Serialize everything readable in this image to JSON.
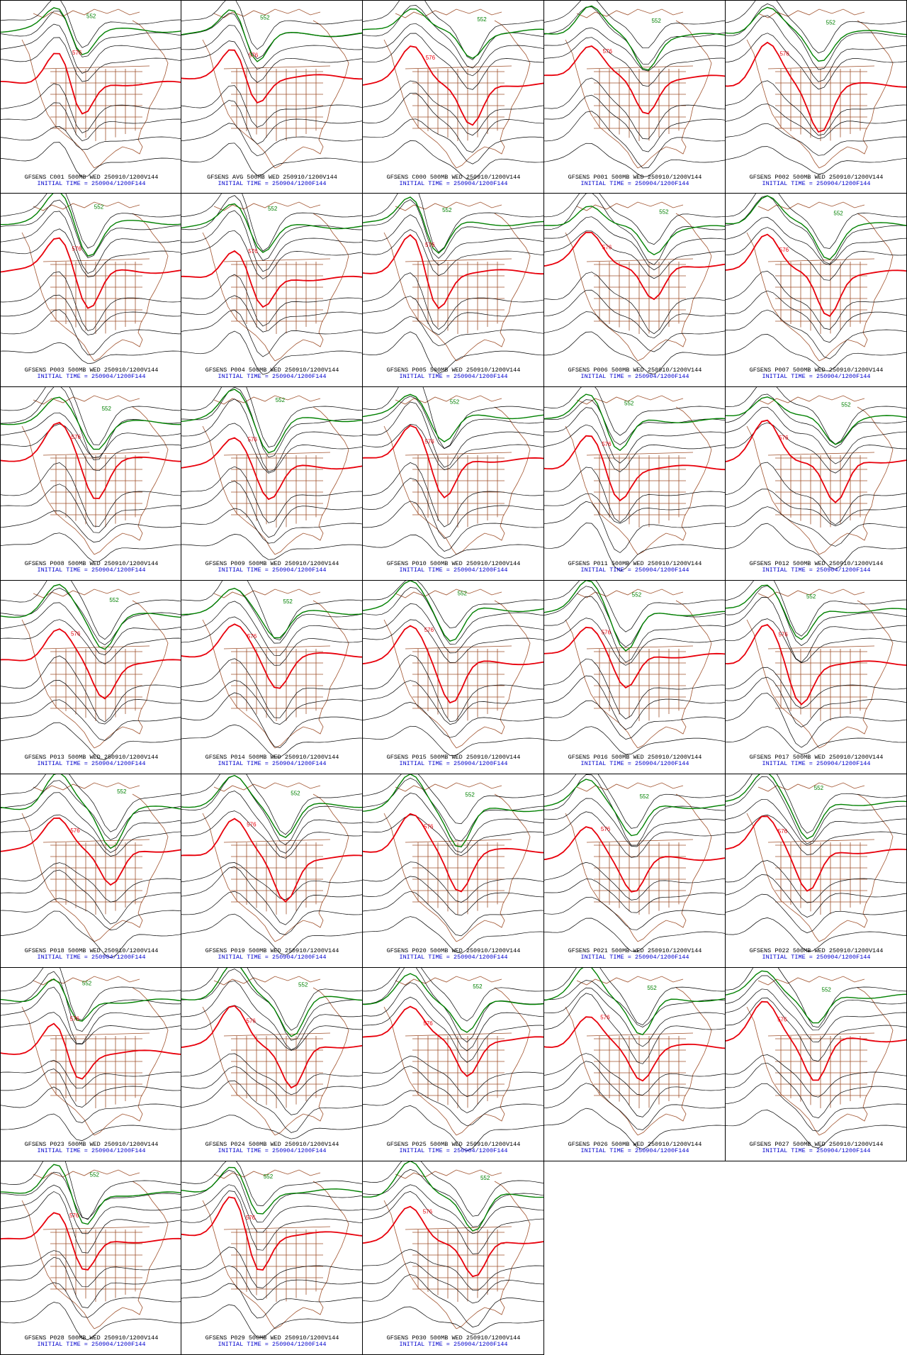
{
  "colors": {
    "height_contour": "#000000",
    "contour_576": "#e8000b",
    "contour_552": "#008000",
    "borders": "#a0522d",
    "caption_line1": "#000000",
    "caption_line2": "#0000cc"
  },
  "contour_labels": {
    "red": "576",
    "green": "552"
  },
  "panels": [
    {
      "line1": "GFSENS C001 500MB WED 250910/1200V144",
      "line2": "INITIAL TIME = 250904/1200F144"
    },
    {
      "line1": "GFSENS AVG 500MB WED 250910/1200V144",
      "line2": "INITIAL TIME = 250904/1200F144"
    },
    {
      "line1": "GFSENS C000 500MB WED 250910/1200V144",
      "line2": "INITIAL TIME = 250904/1200F144"
    },
    {
      "line1": "GFSENS P001 500MB WED 250910/1200V144",
      "line2": "INITIAL TIME = 250904/1200F144"
    },
    {
      "line1": "GFSENS P002 500MB WED 250910/1200V144",
      "line2": "INITIAL TIME = 250904/1200F144"
    },
    {
      "line1": "GFSENS P003 500MB WED 250910/1200V144",
      "line2": "INITIAL TIME = 250904/1200F144"
    },
    {
      "line1": "GFSENS P004 500MB WED 250910/1200V144",
      "line2": "INITIAL TIME = 250904/1200F144"
    },
    {
      "line1": "GFSENS P005 500MB WED 250910/1200V144",
      "line2": "INITIAL TIME = 250904/1200F144"
    },
    {
      "line1": "GFSENS P006 500MB WED 250910/1200V144",
      "line2": "INITIAL TIME = 250904/1200F144"
    },
    {
      "line1": "GFSENS P007 500MB WED 250910/1200V144",
      "line2": "INITIAL TIME = 250904/1200F144"
    },
    {
      "line1": "GFSENS P008 500MB WED 250910/1200V144",
      "line2": "INITIAL TIME = 250904/1200F144"
    },
    {
      "line1": "GFSENS P009 500MB WED 250910/1200V144",
      "line2": "INITIAL TIME = 250904/1200F144"
    },
    {
      "line1": "GFSENS P010 500MB WED 250910/1200V144",
      "line2": "INITIAL TIME = 250904/1200F144"
    },
    {
      "line1": "GFSENS P011 500MB WED 250910/1200V144",
      "line2": "INITIAL TIME = 250904/1200F144"
    },
    {
      "line1": "GFSENS P012 500MB WED 250910/1200V144",
      "line2": "INITIAL TIME = 250904/1200F144"
    },
    {
      "line1": "GFSENS P013 500MB WED 250910/1200V144",
      "line2": "INITIAL TIME = 250904/1200F144"
    },
    {
      "line1": "GFSENS P014 500MB WED 250910/1200V144",
      "line2": "INITIAL TIME = 250904/1200F144"
    },
    {
      "line1": "GFSENS P015 500MB WED 250910/1200V144",
      "line2": "INITIAL TIME = 250904/1200F144"
    },
    {
      "line1": "GFSENS P016 500MB WED 250910/1200V144",
      "line2": "INITIAL TIME = 250904/1200F144"
    },
    {
      "line1": "GFSENS P017 500MB WED 250910/1200V144",
      "line2": "INITIAL TIME = 250904/1200F144"
    },
    {
      "line1": "GFSENS P018 500MB WED 250910/1200V144",
      "line2": "INITIAL TIME = 250904/1200F144"
    },
    {
      "line1": "GFSENS P019 500MB WED 250910/1200V144",
      "line2": "INITIAL TIME = 250904/1200F144"
    },
    {
      "line1": "GFSENS P020 500MB WED 250910/1200V144",
      "line2": "INITIAL TIME = 250904/1200F144"
    },
    {
      "line1": "GFSENS P021 500MB WED 250910/1200V144",
      "line2": "INITIAL TIME = 250904/1200F144"
    },
    {
      "line1": "GFSENS P022 500MB WED 250910/1200V144",
      "line2": "INITIAL TIME = 250904/1200F144"
    },
    {
      "line1": "GFSENS P023 500MB WED 250910/1200V144",
      "line2": "INITIAL TIME = 250904/1200F144"
    },
    {
      "line1": "GFSENS P024 500MB WED 250910/1200V144",
      "line2": "INITIAL TIME = 250904/1200F144"
    },
    {
      "line1": "GFSENS P025 500MB WED 250910/1200V144",
      "line2": "INITIAL TIME = 250904/1200F144"
    },
    {
      "line1": "GFSENS P026 500MB WED 250910/1200V144",
      "line2": "INITIAL TIME = 250904/1200F144"
    },
    {
      "line1": "GFSENS P027 500MB WED 250910/1200V144",
      "line2": "INITIAL TIME = 250904/1200F144"
    },
    {
      "line1": "GFSENS P028 500MB WED 250910/1200V144",
      "line2": "INITIAL TIME = 250904/1200F144"
    },
    {
      "line1": "GFSENS P029 500MB WED 250910/1200V144",
      "line2": "INITIAL TIME = 250904/1200F144"
    },
    {
      "line1": "GFSENS P030 500MB WED 250910/1200V144",
      "line2": "INITIAL TIME = 250904/1200F144"
    }
  ]
}
